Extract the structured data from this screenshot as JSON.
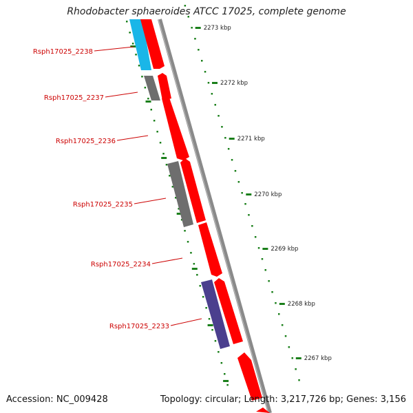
{
  "title": "Rhodobacter sphaeroides ATCC 17025, complete genome",
  "footer": {
    "accession": "Accession: NC_009428",
    "summary": "Topology: circular; Length: 3,217,726 bp; Genes: 3,156"
  },
  "scale_labels": [
    "2273 kbp",
    "2272 kbp",
    "2271 kbp",
    "2270 kbp",
    "2269 kbp",
    "2268 kbp",
    "2267 kbp"
  ],
  "gene_labels": [
    "Rsph17025_2238",
    "Rsph17025_2237",
    "Rsph17025_2236",
    "Rsph17025_2235",
    "Rsph17025_2234",
    "Rsph17025_2233"
  ],
  "colors": {
    "cds": "#ff0000",
    "cyan_feature": "#1ab6e8",
    "gray_feature": "#6e6e6e",
    "purple_feature": "#4b3f8e",
    "backbone": "#8a8a8a",
    "scale": "#1a7f1a",
    "label": "#cc0000"
  }
}
